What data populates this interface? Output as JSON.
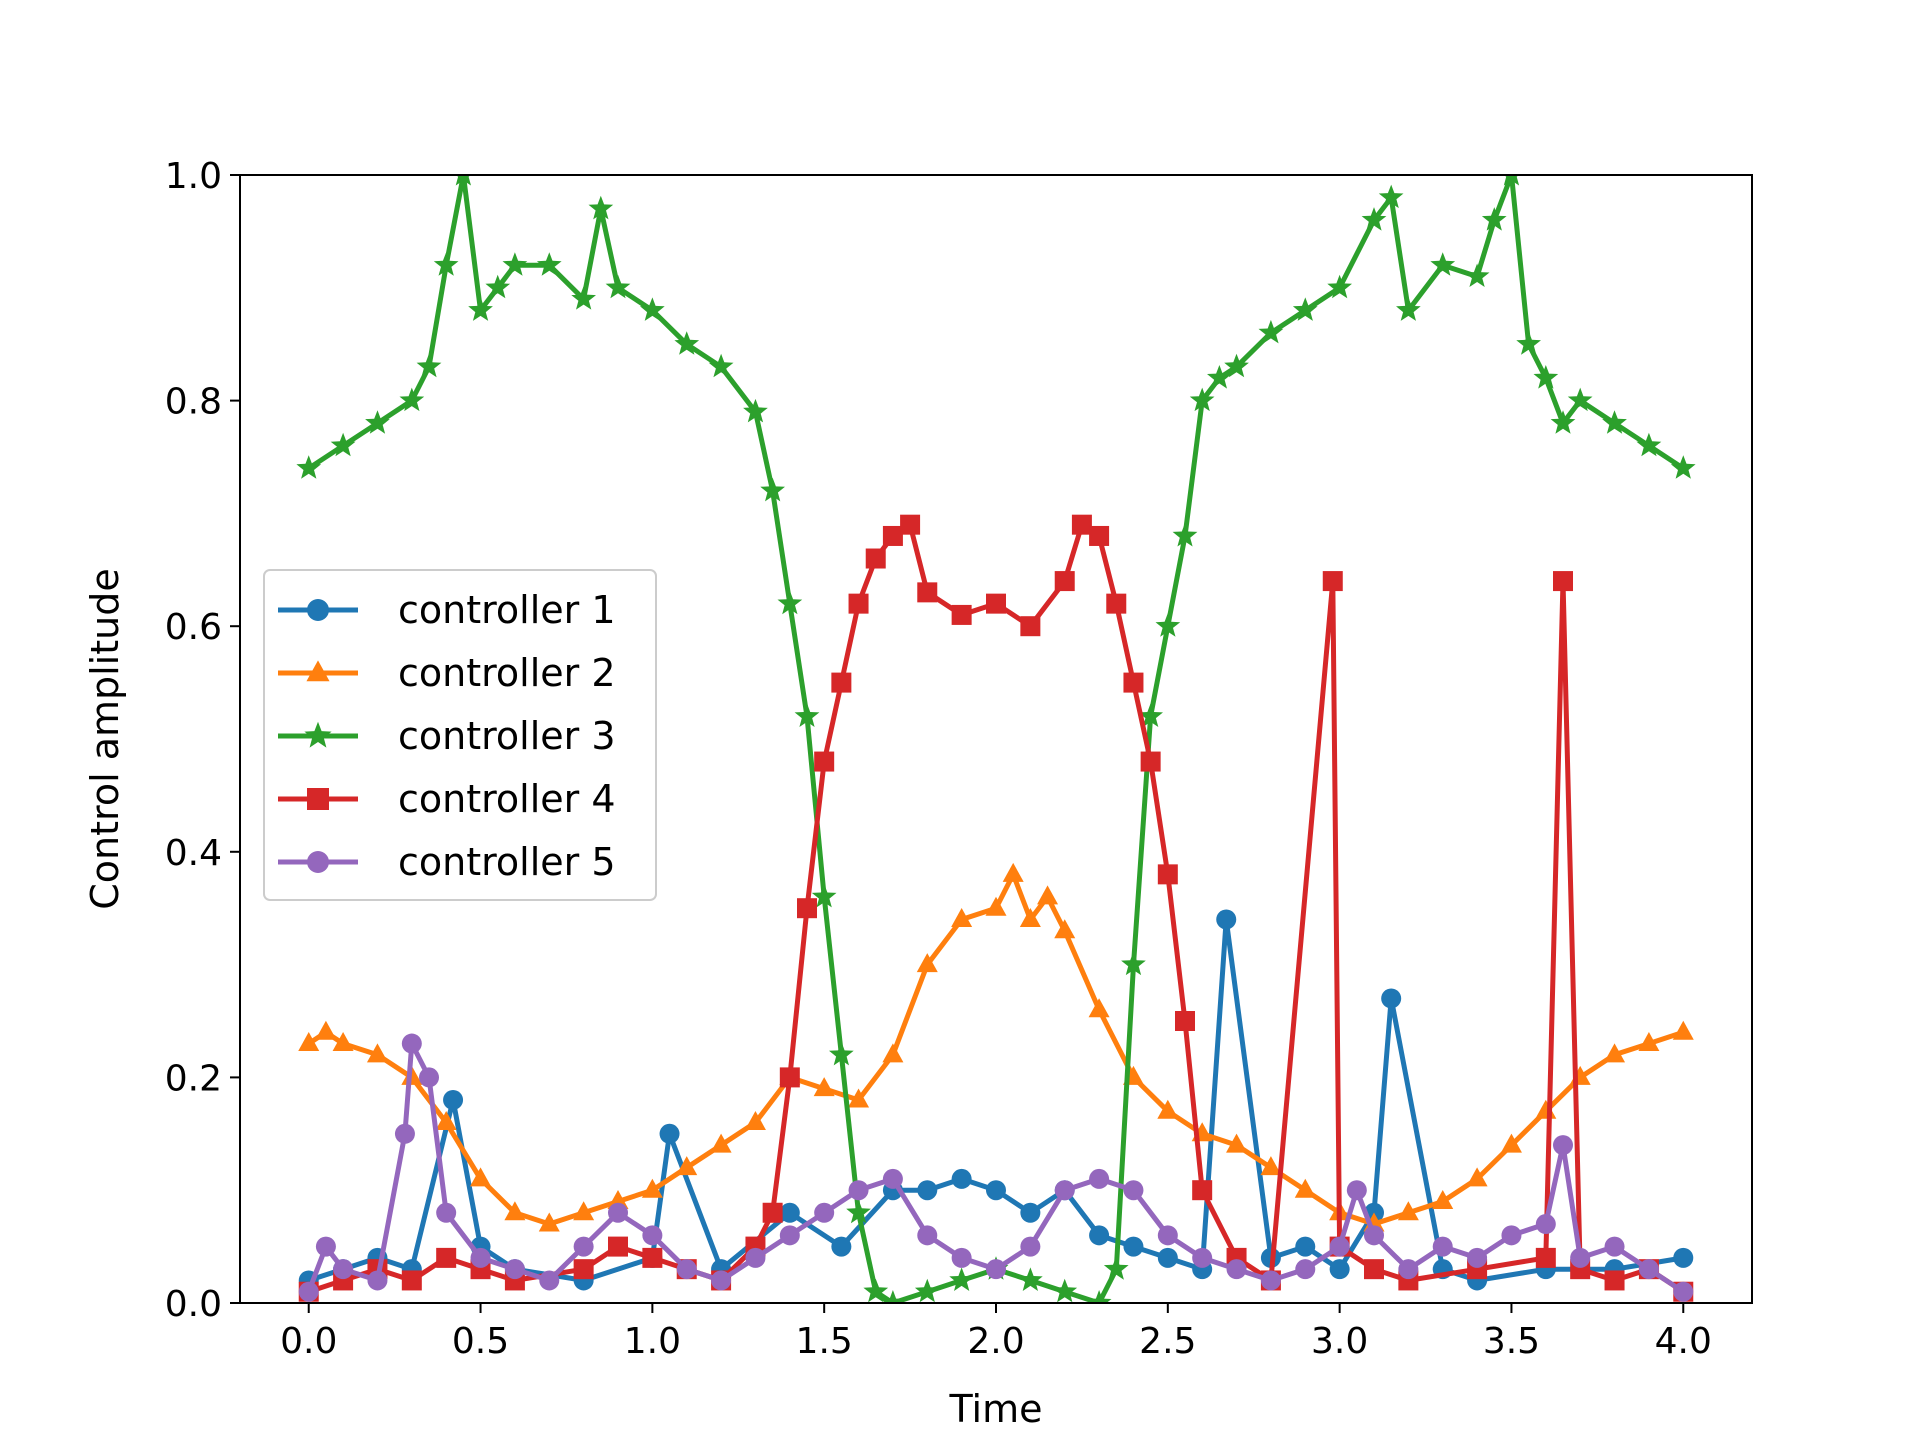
{
  "chart_data": {
    "type": "line",
    "title": "",
    "xlabel": "Time",
    "ylabel": "Control amplitude",
    "xlim": [
      -0.2,
      4.2
    ],
    "ylim": [
      0.0,
      1.0
    ],
    "xticks": [
      0.0,
      0.5,
      1.0,
      1.5,
      2.0,
      2.5,
      3.0,
      3.5,
      4.0
    ],
    "xtick_labels": [
      "0.0",
      "0.5",
      "1.0",
      "1.5",
      "2.0",
      "2.5",
      "3.0",
      "3.5",
      "4.0"
    ],
    "yticks": [
      0.0,
      0.2,
      0.4,
      0.6,
      0.8,
      1.0
    ],
    "ytick_labels": [
      "0.0",
      "0.2",
      "0.4",
      "0.6",
      "0.8",
      "1.0"
    ],
    "grid": false,
    "legend_position": "center-left",
    "series": [
      {
        "name": "controller 1",
        "color": "#1f77b4",
        "marker": "circle",
        "x": [
          0.0,
          0.1,
          0.2,
          0.3,
          0.42,
          0.5,
          0.6,
          0.8,
          1.0,
          1.05,
          1.2,
          1.4,
          1.55,
          1.7,
          1.8,
          1.9,
          2.0,
          2.1,
          2.2,
          2.3,
          2.4,
          2.5,
          2.6,
          2.67,
          2.8,
          2.9,
          3.0,
          3.1,
          3.15,
          3.3,
          3.4,
          3.6,
          3.8,
          4.0
        ],
        "y": [
          0.02,
          0.03,
          0.04,
          0.03,
          0.18,
          0.05,
          0.03,
          0.02,
          0.04,
          0.15,
          0.03,
          0.08,
          0.05,
          0.1,
          0.1,
          0.11,
          0.1,
          0.08,
          0.1,
          0.06,
          0.05,
          0.04,
          0.03,
          0.34,
          0.04,
          0.05,
          0.03,
          0.08,
          0.27,
          0.03,
          0.02,
          0.03,
          0.03,
          0.04
        ]
      },
      {
        "name": "controller 2",
        "color": "#ff7f0e",
        "marker": "triangle",
        "x": [
          0.0,
          0.05,
          0.1,
          0.2,
          0.3,
          0.4,
          0.5,
          0.6,
          0.7,
          0.8,
          0.9,
          1.0,
          1.1,
          1.2,
          1.3,
          1.4,
          1.5,
          1.6,
          1.7,
          1.8,
          1.9,
          2.0,
          2.05,
          2.1,
          2.15,
          2.2,
          2.3,
          2.4,
          2.5,
          2.6,
          2.7,
          2.8,
          2.9,
          3.0,
          3.1,
          3.2,
          3.3,
          3.4,
          3.5,
          3.6,
          3.7,
          3.8,
          3.9,
          4.0
        ],
        "y": [
          0.23,
          0.24,
          0.23,
          0.22,
          0.2,
          0.16,
          0.11,
          0.08,
          0.07,
          0.08,
          0.09,
          0.1,
          0.12,
          0.14,
          0.16,
          0.2,
          0.19,
          0.18,
          0.22,
          0.3,
          0.34,
          0.35,
          0.38,
          0.34,
          0.36,
          0.33,
          0.26,
          0.2,
          0.17,
          0.15,
          0.14,
          0.12,
          0.1,
          0.08,
          0.07,
          0.08,
          0.09,
          0.11,
          0.14,
          0.17,
          0.2,
          0.22,
          0.23,
          0.24
        ]
      },
      {
        "name": "controller 3",
        "color": "#2ca02c",
        "marker": "star",
        "x": [
          0.0,
          0.1,
          0.2,
          0.3,
          0.35,
          0.4,
          0.45,
          0.5,
          0.55,
          0.6,
          0.7,
          0.8,
          0.85,
          0.9,
          1.0,
          1.1,
          1.2,
          1.3,
          1.35,
          1.4,
          1.45,
          1.5,
          1.55,
          1.6,
          1.65,
          1.7,
          1.8,
          1.9,
          2.0,
          2.1,
          2.2,
          2.3,
          2.35,
          2.4,
          2.45,
          2.5,
          2.55,
          2.6,
          2.65,
          2.7,
          2.8,
          2.9,
          3.0,
          3.1,
          3.15,
          3.2,
          3.3,
          3.4,
          3.45,
          3.5,
          3.55,
          3.6,
          3.65,
          3.7,
          3.8,
          3.9,
          4.0
        ],
        "y": [
          0.74,
          0.76,
          0.78,
          0.8,
          0.83,
          0.92,
          1.0,
          0.88,
          0.9,
          0.92,
          0.92,
          0.89,
          0.97,
          0.9,
          0.88,
          0.85,
          0.83,
          0.79,
          0.72,
          0.62,
          0.52,
          0.36,
          0.22,
          0.08,
          0.01,
          0.0,
          0.01,
          0.02,
          0.03,
          0.02,
          0.01,
          0.0,
          0.03,
          0.3,
          0.52,
          0.6,
          0.68,
          0.8,
          0.82,
          0.83,
          0.86,
          0.88,
          0.9,
          0.96,
          0.98,
          0.88,
          0.92,
          0.91,
          0.96,
          1.0,
          0.85,
          0.82,
          0.78,
          0.8,
          0.78,
          0.76,
          0.74
        ]
      },
      {
        "name": "controller 4",
        "color": "#d62728",
        "marker": "square",
        "x": [
          0.0,
          0.1,
          0.2,
          0.3,
          0.4,
          0.5,
          0.6,
          0.8,
          0.9,
          1.0,
          1.1,
          1.2,
          1.3,
          1.35,
          1.4,
          1.45,
          1.5,
          1.55,
          1.6,
          1.65,
          1.7,
          1.75,
          1.8,
          1.9,
          2.0,
          2.1,
          2.2,
          2.25,
          2.3,
          2.35,
          2.4,
          2.45,
          2.5,
          2.55,
          2.6,
          2.7,
          2.8,
          2.98,
          3.0,
          3.1,
          3.2,
          3.4,
          3.6,
          3.65,
          3.7,
          3.8,
          3.9,
          4.0
        ],
        "y": [
          0.01,
          0.02,
          0.03,
          0.02,
          0.04,
          0.03,
          0.02,
          0.03,
          0.05,
          0.04,
          0.03,
          0.02,
          0.05,
          0.08,
          0.2,
          0.35,
          0.48,
          0.55,
          0.62,
          0.66,
          0.68,
          0.69,
          0.63,
          0.61,
          0.62,
          0.6,
          0.64,
          0.69,
          0.68,
          0.62,
          0.55,
          0.48,
          0.38,
          0.25,
          0.1,
          0.04,
          0.02,
          0.64,
          0.05,
          0.03,
          0.02,
          0.03,
          0.04,
          0.64,
          0.03,
          0.02,
          0.03,
          0.01
        ]
      },
      {
        "name": "controller 5",
        "color": "#9467bd",
        "marker": "circle",
        "x": [
          0.0,
          0.05,
          0.1,
          0.2,
          0.28,
          0.3,
          0.35,
          0.4,
          0.5,
          0.6,
          0.7,
          0.8,
          0.9,
          1.0,
          1.1,
          1.2,
          1.3,
          1.4,
          1.5,
          1.6,
          1.7,
          1.8,
          1.9,
          2.0,
          2.1,
          2.2,
          2.3,
          2.4,
          2.5,
          2.6,
          2.7,
          2.8,
          2.9,
          3.0,
          3.05,
          3.1,
          3.2,
          3.3,
          3.4,
          3.5,
          3.6,
          3.65,
          3.7,
          3.8,
          3.9,
          4.0
        ],
        "y": [
          0.01,
          0.05,
          0.03,
          0.02,
          0.15,
          0.23,
          0.2,
          0.08,
          0.04,
          0.03,
          0.02,
          0.05,
          0.08,
          0.06,
          0.03,
          0.02,
          0.04,
          0.06,
          0.08,
          0.1,
          0.11,
          0.06,
          0.04,
          0.03,
          0.05,
          0.1,
          0.11,
          0.1,
          0.06,
          0.04,
          0.03,
          0.02,
          0.03,
          0.05,
          0.1,
          0.06,
          0.03,
          0.05,
          0.04,
          0.06,
          0.07,
          0.14,
          0.04,
          0.05,
          0.03,
          0.01
        ]
      }
    ]
  }
}
